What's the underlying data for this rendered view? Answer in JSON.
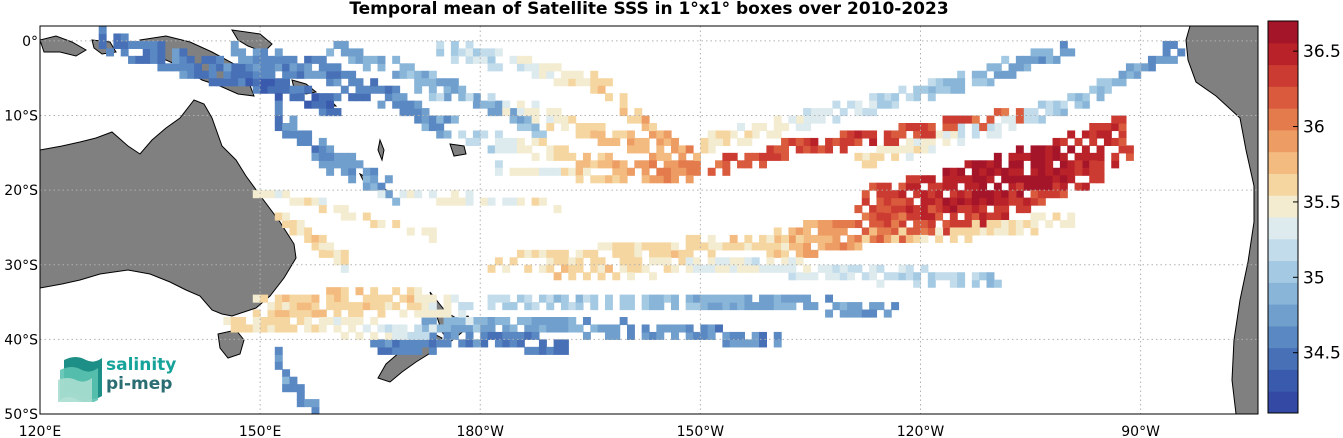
{
  "title": "Temporal mean of Satellite SSS in 1°x1° boxes over 2010-2023",
  "map": {
    "lon_ticks": [
      {
        "lon": 120,
        "label": "120°E"
      },
      {
        "lon": 150,
        "label": "150°E"
      },
      {
        "lon": 180,
        "label": "180°W"
      },
      {
        "lon": 210,
        "label": "150°W"
      },
      {
        "lon": 240,
        "label": "120°W"
      },
      {
        "lon": 270,
        "label": "90°W"
      }
    ],
    "lat_ticks": [
      {
        "lat": 0,
        "label": "0°"
      },
      {
        "lat": -10,
        "label": "10°S"
      },
      {
        "lat": -20,
        "label": "20°S"
      },
      {
        "lat": -30,
        "label": "30°S"
      },
      {
        "lat": -40,
        "label": "40°S"
      },
      {
        "lat": -50,
        "label": "50°S"
      }
    ],
    "lon_range": [
      120,
      286
    ],
    "lat_range": [
      -50,
      2
    ],
    "grid": "dotted",
    "land_color": "#808080"
  },
  "colorbar": {
    "range": [
      34.1,
      36.7
    ],
    "ticks": [
      {
        "value": 36.5,
        "label": "36.5"
      },
      {
        "value": 36,
        "label": "36"
      },
      {
        "value": 35.5,
        "label": "35.5"
      },
      {
        "value": 35,
        "label": "35"
      },
      {
        "value": 34.5,
        "label": "34.5"
      }
    ],
    "colors": [
      "#3449a3",
      "#3a5aad",
      "#4770b7",
      "#5a88c2",
      "#709fcd",
      "#88b5d8",
      "#a4c9e2",
      "#c2dceb",
      "#ddeaee",
      "#f3ecd0",
      "#f6d6a0",
      "#f3bb7f",
      "#ed9c63",
      "#e47b4d",
      "#d95a3d",
      "#cc3b31",
      "#b82228",
      "#a5152a"
    ]
  },
  "logo": {
    "line1": "salinity",
    "line2": "pi-mep"
  }
}
